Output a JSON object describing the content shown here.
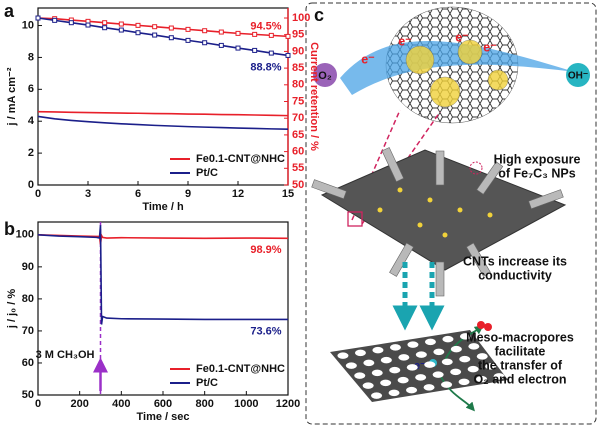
{
  "panel_labels": [
    "a",
    "b",
    "c"
  ],
  "chart_data": [
    {
      "type": "line",
      "xlabel": "Time / h",
      "ylabel": "j / mA cm⁻²",
      "y2label": "Current retention / %",
      "xlim": [
        0,
        15
      ],
      "xticks": [
        0,
        3,
        6,
        9,
        12,
        15
      ],
      "ylim": [
        0,
        11.1
      ],
      "yticks": [
        0,
        2,
        4,
        6,
        8,
        10
      ],
      "y2lim": [
        50,
        103
      ],
      "y2ticks": [
        50,
        55,
        60,
        65,
        70,
        75,
        80,
        85,
        90,
        95,
        100
      ],
      "y2color": "#e8202a",
      "legend": "lower right",
      "x": [
        0,
        1,
        2,
        3,
        4,
        5,
        6,
        7,
        8,
        9,
        10,
        11,
        12,
        13,
        14,
        15
      ],
      "series": [
        {
          "axis": "y2",
          "color": "#e8202a",
          "marker": true,
          "values": [
            100,
            99.8,
            99.4,
            99,
            98.6,
            98.2,
            97.8,
            97.4,
            97,
            96.6,
            96.2,
            95.8,
            95.4,
            95.1,
            94.8,
            94.5
          ],
          "value_labels": [
            null,
            null,
            null,
            null,
            null,
            null,
            null,
            null,
            null,
            null,
            null,
            null,
            null,
            null,
            null,
            "94.5%"
          ]
        },
        {
          "axis": "y2",
          "color": "#1b1f8a",
          "marker": true,
          "values": [
            100,
            99.3,
            98.6,
            97.9,
            97.1,
            96.4,
            95.6,
            94.9,
            94.1,
            93.3,
            92.6,
            91.8,
            91,
            90.3,
            89.5,
            88.8
          ],
          "value_labels": [
            null,
            null,
            null,
            null,
            null,
            null,
            null,
            null,
            null,
            null,
            null,
            null,
            null,
            null,
            null,
            "88.8%"
          ]
        },
        {
          "name": "Fe0.1-CNT@NHC",
          "color": "#e8202a",
          "values": [
            4.6,
            4.58,
            4.56,
            4.54,
            4.53,
            4.51,
            4.5,
            4.48,
            4.47,
            4.45,
            4.44,
            4.42,
            4.41,
            4.39,
            4.37,
            4.35
          ]
        },
        {
          "name": "Pt/C",
          "color": "#1b1f8a",
          "values": [
            4.3,
            4.15,
            4.05,
            3.97,
            3.9,
            3.84,
            3.79,
            3.74,
            3.7,
            3.66,
            3.63,
            3.6,
            3.57,
            3.55,
            3.52,
            3.5
          ]
        }
      ]
    },
    {
      "type": "line",
      "xlabel": "Time / sec",
      "ylabel": "j / j₀ / %",
      "xlim": [
        0,
        1200
      ],
      "xticks": [
        0,
        200,
        400,
        600,
        800,
        1000,
        1200
      ],
      "ylim": [
        50,
        104
      ],
      "yticks": [
        50,
        60,
        70,
        80,
        90,
        100
      ],
      "legend": "lower right",
      "annotation": {
        "text": "3 M CH₃OH",
        "x": 300,
        "color": "#9b30c8"
      },
      "x": [
        0,
        100,
        200,
        280,
        295,
        300,
        305,
        310,
        330,
        400,
        600,
        800,
        1000,
        1200
      ],
      "series": [
        {
          "name": "Fe0.1-CNT@NHC",
          "color": "#e8202a",
          "values": [
            100,
            99.8,
            99.6,
            99.5,
            99.5,
            97,
            99.8,
            99.2,
            99,
            99.1,
            99,
            98.9,
            99,
            98.9
          ],
          "value_labels": [
            null,
            null,
            null,
            null,
            null,
            null,
            null,
            null,
            null,
            null,
            null,
            null,
            null,
            "98.9%"
          ]
        },
        {
          "name": "Pt/C",
          "color": "#1b1f8a",
          "values": [
            100,
            99.6,
            99.4,
            99.2,
            99,
            103,
            72,
            74.5,
            74,
            73.8,
            73.7,
            73.6,
            73.6,
            73.6
          ],
          "value_labels": [
            null,
            null,
            null,
            null,
            null,
            null,
            null,
            null,
            null,
            null,
            null,
            null,
            null,
            "73.6%"
          ]
        }
      ]
    }
  ],
  "diagram": {
    "o2": "O₂",
    "oh": "OH⁻",
    "electron": "e⁻",
    "labels": [
      [
        "High exposure",
        "of Fe₇C₃ NPs"
      ],
      [
        "CNTs increase its",
        "conductivity"
      ],
      [
        "Meso-macropores",
        "facilitate",
        "the transfer of",
        "O₂ and electron"
      ]
    ]
  }
}
